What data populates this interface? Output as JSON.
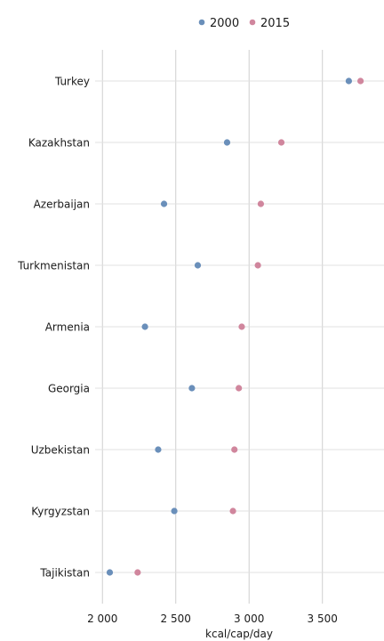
{
  "chart_data": {
    "type": "scatter",
    "title": "",
    "xlabel": "kcal/cap/day",
    "ylabel": "",
    "xlim": [
      1950,
      3920
    ],
    "xticks": [
      2000,
      2500,
      3000,
      3500
    ],
    "xtick_labels": [
      "2 000",
      "2 500",
      "3 000",
      "3 500"
    ],
    "grid": true,
    "legend_position": "top",
    "categories": [
      "Turkey",
      "Kazakhstan",
      "Azerbaijan",
      "Turkmenistan",
      "Armenia",
      "Georgia",
      "Uzbekistan",
      "Kyrgyzstan",
      "Tajikistan"
    ],
    "series": [
      {
        "name": "2000",
        "color": "#6a8fba",
        "values": [
          3680,
          2850,
          2420,
          2650,
          2290,
          2610,
          2380,
          2490,
          2050
        ]
      },
      {
        "name": "2015",
        "color": "#d0869d",
        "values": [
          3760,
          3220,
          3080,
          3060,
          2950,
          2930,
          2900,
          2890,
          2240
        ]
      }
    ]
  }
}
